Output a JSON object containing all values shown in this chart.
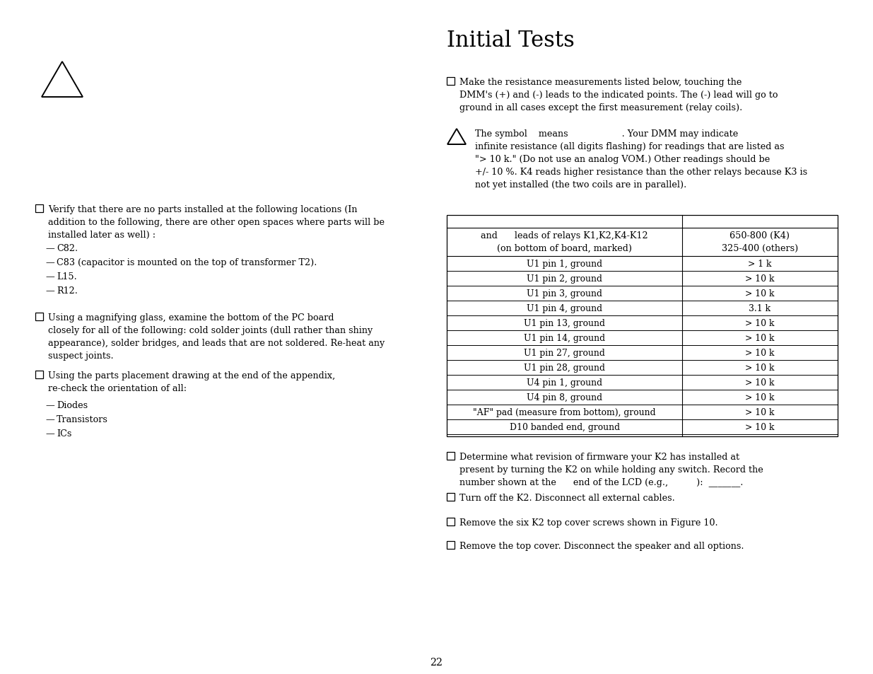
{
  "title": "Initial Tests",
  "bg_color": "#ffffff",
  "text_color": "#000000",
  "page_number": "22",
  "font_size_body": 9.2,
  "font_size_title": 22,
  "font_family": "DejaVu Serif",
  "table_rows": [
    [
      "U1 pin 1, ground",
      "> 1 k"
    ],
    [
      "U1 pin 2, ground",
      "> 10 k"
    ],
    [
      "U1 pin 3, ground",
      "> 10 k"
    ],
    [
      "U1 pin 4, ground",
      "3.1 k"
    ],
    [
      "U1 pin 13, ground",
      "> 10 k"
    ],
    [
      "U1 pin 14, ground",
      "> 10 k"
    ],
    [
      "U1 pin 27, ground",
      "> 10 k"
    ],
    [
      "U1 pin 28, ground",
      "> 10 k"
    ],
    [
      "U4 pin 1, ground",
      "> 10 k"
    ],
    [
      "U4 pin 8, ground",
      "> 10 k"
    ],
    [
      "\"AF\" pad (measure from bottom), ground",
      "> 10 k"
    ],
    [
      "D10 banded end, ground",
      "> 10 k"
    ]
  ]
}
